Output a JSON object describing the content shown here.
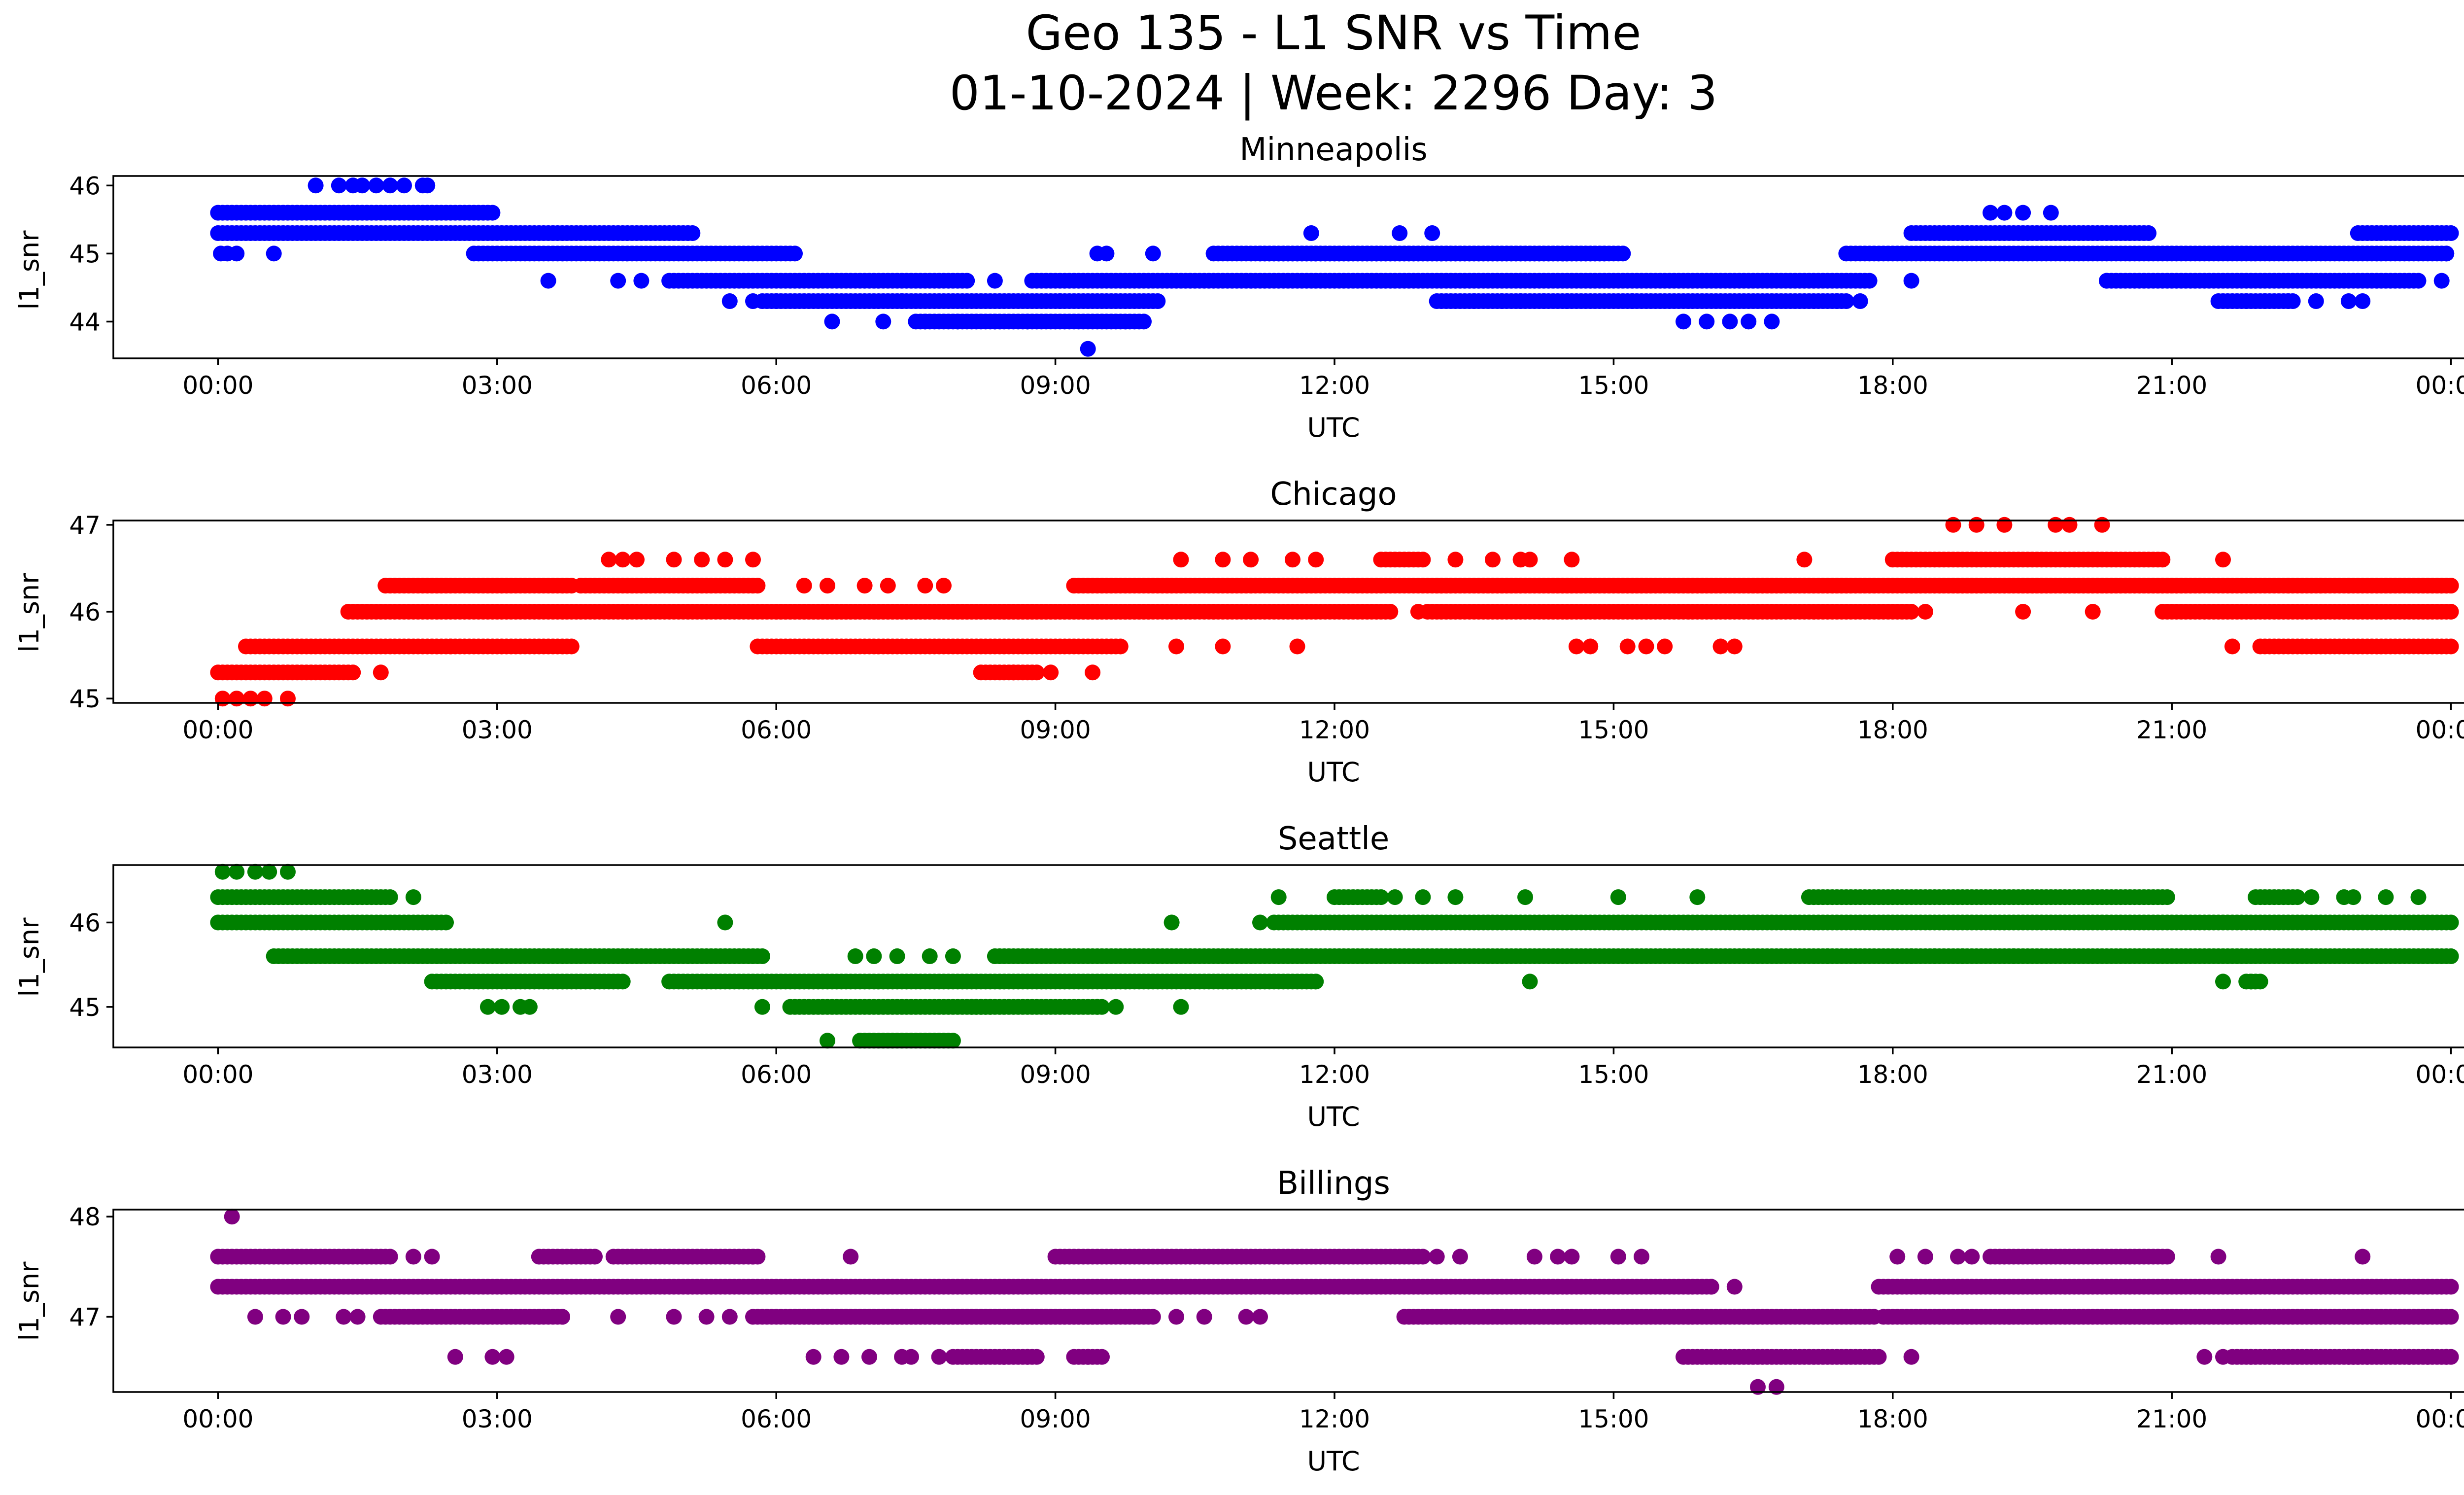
{
  "figure": {
    "title_line1": "Geo 135 - L1 SNR vs Time",
    "title_line2": "01-10-2024 | Week: 2296 Day: 3"
  },
  "chart_data": [
    {
      "type": "scatter",
      "title": "Minneapolis",
      "xlabel": "UTC",
      "ylabel": "l1_snr",
      "color": "#0000ff",
      "xlim_hours": [
        -1.125,
        25.125
      ],
      "ylim": [
        43.46,
        46.14
      ],
      "xticks": [
        "00:00",
        "03:00",
        "06:00",
        "09:00",
        "12:00",
        "15:00",
        "18:00",
        "21:00",
        "00:00"
      ],
      "xtick_hours": [
        0,
        3,
        6,
        9,
        12,
        15,
        18,
        21,
        24
      ],
      "yticks": [
        44,
        45,
        46
      ],
      "points": [
        [
          0.03,
          45.0
        ],
        [
          0.1,
          45.0
        ],
        [
          0.2,
          45.0
        ],
        [
          0.6,
          45.0
        ],
        [
          1.05,
          46.0
        ],
        [
          1.3,
          46.0
        ],
        [
          1.45,
          46.0
        ],
        [
          1.55,
          46.0
        ],
        [
          1.7,
          46.0
        ],
        [
          1.85,
          46.0
        ],
        [
          2.0,
          46.0
        ],
        [
          2.2,
          46.0
        ],
        [
          2.25,
          46.0
        ],
        [
          3.55,
          44.6
        ],
        [
          4.3,
          44.6
        ],
        [
          4.55,
          44.6
        ],
        [
          5.5,
          44.3
        ],
        [
          5.75,
          44.3
        ],
        [
          6.0,
          44.3
        ],
        [
          6.6,
          44.0
        ],
        [
          7.15,
          44.0
        ],
        [
          7.35,
          44.3
        ],
        [
          7.6,
          44.0
        ],
        [
          7.95,
          44.0
        ],
        [
          8.35,
          44.6
        ],
        [
          8.35,
          44.0
        ],
        [
          8.7,
          44.0
        ],
        [
          9.05,
          44.3
        ],
        [
          9.35,
          43.6
        ],
        [
          9.45,
          45.0
        ],
        [
          9.55,
          45.0
        ],
        [
          10.05,
          45.0
        ],
        [
          11.75,
          45.3
        ],
        [
          12.7,
          45.3
        ],
        [
          13.05,
          45.3
        ],
        [
          13.5,
          44.3
        ],
        [
          13.8,
          44.3
        ],
        [
          14.0,
          44.3
        ],
        [
          14.25,
          44.3
        ],
        [
          14.5,
          44.3
        ],
        [
          15.2,
          44.3
        ],
        [
          15.75,
          44.0
        ],
        [
          16.0,
          44.0
        ],
        [
          16.25,
          44.0
        ],
        [
          16.45,
          44.0
        ],
        [
          16.7,
          44.0
        ],
        [
          17.4,
          44.3
        ],
        [
          17.65,
          44.3
        ],
        [
          18.2,
          44.6
        ],
        [
          19.05,
          45.6
        ],
        [
          19.2,
          45.6
        ],
        [
          19.4,
          45.6
        ],
        [
          19.7,
          45.6
        ],
        [
          20.3,
          44.6
        ],
        [
          21.8,
          44.3
        ],
        [
          22.0,
          44.3
        ],
        [
          22.25,
          44.3
        ],
        [
          22.55,
          44.3
        ],
        [
          22.9,
          44.3
        ],
        [
          23.05,
          44.3
        ],
        [
          23.9,
          44.6
        ],
        [
          23.95,
          45.0
        ]
      ],
      "runs": [
        [
          0,
          2.95,
          45.6
        ],
        [
          0,
          5.1,
          45.3
        ],
        [
          2.75,
          6.2,
          45.0
        ],
        [
          4.85,
          8.05,
          44.6
        ],
        [
          5.85,
          10.1,
          44.3
        ],
        [
          7.5,
          9.95,
          44.0
        ],
        [
          8.75,
          17.75,
          44.6
        ],
        [
          10.7,
          14.9,
          45.0
        ],
        [
          11.2,
          15.1,
          45.0
        ],
        [
          13.1,
          17.5,
          44.3
        ],
        [
          17.5,
          23.95,
          45.0
        ],
        [
          18.2,
          20.75,
          45.3
        ],
        [
          20.3,
          23.65,
          44.6
        ],
        [
          21.5,
          22.3,
          44.3
        ],
        [
          23.0,
          24.0,
          45.3
        ]
      ]
    },
    {
      "type": "scatter",
      "title": "Chicago",
      "xlabel": "UTC",
      "ylabel": "l1_snr",
      "color": "#ff0000",
      "xlim_hours": [
        -1.125,
        25.125
      ],
      "ylim": [
        44.95,
        47.05
      ],
      "xticks": [
        "00:00",
        "03:00",
        "06:00",
        "09:00",
        "12:00",
        "15:00",
        "18:00",
        "21:00",
        "00:00"
      ],
      "xtick_hours": [
        0,
        3,
        6,
        9,
        12,
        15,
        18,
        21,
        24
      ],
      "yticks": [
        45,
        46,
        47
      ],
      "points": [
        [
          0.05,
          45.0
        ],
        [
          0.2,
          45.0
        ],
        [
          0.35,
          45.0
        ],
        [
          0.5,
          45.0
        ],
        [
          0.75,
          45.0
        ],
        [
          1.75,
          45.3
        ],
        [
          4.2,
          46.6
        ],
        [
          4.35,
          46.6
        ],
        [
          4.5,
          46.6
        ],
        [
          4.9,
          46.6
        ],
        [
          5.2,
          46.6
        ],
        [
          5.45,
          46.6
        ],
        [
          5.75,
          46.6
        ],
        [
          6.3,
          46.3
        ],
        [
          6.55,
          46.3
        ],
        [
          6.95,
          46.3
        ],
        [
          7.2,
          46.3
        ],
        [
          7.6,
          46.3
        ],
        [
          7.8,
          46.3
        ],
        [
          8.55,
          45.3
        ],
        [
          8.95,
          45.3
        ],
        [
          9.4,
          45.3
        ],
        [
          10.35,
          46.6
        ],
        [
          10.3,
          45.6
        ],
        [
          10.8,
          46.6
        ],
        [
          10.8,
          45.6
        ],
        [
          11.1,
          46.6
        ],
        [
          11.6,
          45.6
        ],
        [
          11.55,
          46.6
        ],
        [
          11.8,
          46.6
        ],
        [
          12.9,
          46.0
        ],
        [
          13.3,
          46.6
        ],
        [
          13.7,
          46.6
        ],
        [
          14.0,
          46.6
        ],
        [
          14.1,
          46.6
        ],
        [
          14.55,
          46.6
        ],
        [
          14.6,
          45.6
        ],
        [
          14.75,
          45.6
        ],
        [
          15.15,
          45.6
        ],
        [
          15.35,
          45.6
        ],
        [
          15.55,
          45.6
        ],
        [
          16.15,
          45.6
        ],
        [
          16.3,
          45.6
        ],
        [
          17.05,
          46.6
        ],
        [
          18.35,
          46.0
        ],
        [
          18.65,
          47.0
        ],
        [
          18.9,
          47.0
        ],
        [
          19.2,
          47.0
        ],
        [
          19.4,
          46.0
        ],
        [
          19.75,
          47.0
        ],
        [
          19.9,
          47.0
        ],
        [
          20.15,
          46.0
        ],
        [
          20.25,
          47.0
        ],
        [
          21.55,
          46.6
        ],
        [
          21.65,
          45.6
        ],
        [
          22.25,
          46.3
        ],
        [
          22.6,
          46.3
        ],
        [
          22.9,
          46.3
        ]
      ],
      "runs": [
        [
          0,
          1.45,
          45.3
        ],
        [
          0.3,
          2.5,
          45.6
        ],
        [
          1.4,
          10.7,
          46.0
        ],
        [
          1.8,
          3.8,
          46.3
        ],
        [
          2.5,
          3.8,
          45.6
        ],
        [
          3.9,
          5.8,
          46.3
        ],
        [
          5.8,
          9.7,
          45.6
        ],
        [
          6.0,
          10.0,
          46.0
        ],
        [
          8.2,
          8.8,
          45.3
        ],
        [
          9.2,
          24.0,
          46.3
        ],
        [
          10.7,
          12.6,
          46.0
        ],
        [
          12.5,
          12.95,
          46.6
        ],
        [
          13.0,
          18.2,
          46.0
        ],
        [
          13.1,
          17.8,
          46.3
        ],
        [
          18.0,
          20.9,
          46.6
        ],
        [
          18.2,
          21.3,
          46.3
        ],
        [
          20.9,
          24.0,
          46.0
        ],
        [
          21.95,
          24.0,
          45.6
        ],
        [
          23.3,
          24.0,
          46.3
        ]
      ]
    },
    {
      "type": "scatter",
      "title": "Seattle",
      "xlabel": "UTC",
      "ylabel": "l1_snr",
      "color": "#008000",
      "xlim_hours": [
        -1.125,
        25.125
      ],
      "ylim": [
        44.52,
        46.68
      ],
      "xticks": [
        "00:00",
        "03:00",
        "06:00",
        "09:00",
        "12:00",
        "15:00",
        "18:00",
        "21:00",
        "00:00"
      ],
      "xtick_hours": [
        0,
        3,
        6,
        9,
        12,
        15,
        18,
        21,
        24
      ],
      "yticks": [
        45,
        46
      ],
      "points": [
        [
          0.05,
          46.6
        ],
        [
          0.2,
          46.6
        ],
        [
          0.4,
          46.6
        ],
        [
          0.55,
          46.6
        ],
        [
          0.75,
          46.6
        ],
        [
          2.1,
          46.3
        ],
        [
          2.9,
          45.0
        ],
        [
          3.05,
          45.0
        ],
        [
          3.25,
          45.0
        ],
        [
          3.35,
          45.0
        ],
        [
          4.05,
          45.3
        ],
        [
          5.45,
          46.0
        ],
        [
          5.85,
          45.0
        ],
        [
          6.55,
          44.6
        ],
        [
          6.85,
          45.6
        ],
        [
          7.05,
          45.6
        ],
        [
          7.3,
          45.6
        ],
        [
          7.65,
          45.6
        ],
        [
          7.9,
          45.6
        ],
        [
          9.45,
          45.0
        ],
        [
          9.65,
          45.0
        ],
        [
          10.25,
          46.0
        ],
        [
          10.35,
          45.0
        ],
        [
          11.2,
          46.0
        ],
        [
          11.4,
          46.3
        ],
        [
          12.65,
          46.3
        ],
        [
          12.95,
          46.3
        ],
        [
          13.3,
          46.3
        ],
        [
          14.1,
          45.3
        ],
        [
          14.05,
          46.3
        ],
        [
          15.05,
          46.3
        ],
        [
          15.9,
          46.3
        ],
        [
          17.3,
          45.6
        ],
        [
          17.6,
          45.6
        ],
        [
          18.2,
          45.6
        ],
        [
          18.45,
          45.6
        ],
        [
          18.75,
          45.6
        ],
        [
          19.3,
          45.6
        ],
        [
          21.55,
          45.3
        ],
        [
          21.85,
          45.3
        ],
        [
          22.5,
          46.3
        ],
        [
          22.85,
          46.3
        ],
        [
          22.95,
          46.3
        ],
        [
          23.3,
          46.3
        ],
        [
          23.65,
          46.3
        ]
      ],
      "runs": [
        [
          0,
          1.85,
          46.3
        ],
        [
          0,
          2.45,
          46.0
        ],
        [
          0.6,
          5.85,
          45.6
        ],
        [
          2.3,
          4.35,
          45.3
        ],
        [
          4.85,
          11.8,
          45.3
        ],
        [
          6.15,
          8.3,
          45.0
        ],
        [
          6.9,
          7.9,
          44.6
        ],
        [
          8.1,
          9.5,
          45.0
        ],
        [
          8.35,
          24.0,
          45.6
        ],
        [
          11.35,
          24.0,
          46.0
        ],
        [
          12.0,
          12.5,
          46.3
        ],
        [
          17.1,
          20.95,
          46.3
        ],
        [
          21.8,
          21.95,
          45.3
        ],
        [
          21.9,
          22.35,
          46.3
        ]
      ]
    },
    {
      "type": "scatter",
      "title": "Billings",
      "xlabel": "UTC",
      "ylabel": "l1_snr",
      "color": "#800080",
      "xlim_hours": [
        -1.125,
        25.125
      ],
      "ylim": [
        46.25,
        48.07
      ],
      "xticks": [
        "00:00",
        "03:00",
        "06:00",
        "09:00",
        "12:00",
        "15:00",
        "18:00",
        "21:00",
        "00:00"
      ],
      "xtick_hours": [
        0,
        3,
        6,
        9,
        12,
        15,
        18,
        21,
        24
      ],
      "yticks": [
        47,
        48
      ],
      "points": [
        [
          0.15,
          48.0
        ],
        [
          0.4,
          47.0
        ],
        [
          0.7,
          47.0
        ],
        [
          0.9,
          47.0
        ],
        [
          1.35,
          47.0
        ],
        [
          1.5,
          47.0
        ],
        [
          1.75,
          47.0
        ],
        [
          2.1,
          47.6
        ],
        [
          2.3,
          47.6
        ],
        [
          2.55,
          46.6
        ],
        [
          2.95,
          46.6
        ],
        [
          3.1,
          46.6
        ],
        [
          3.45,
          47.0
        ],
        [
          3.7,
          47.0
        ],
        [
          4.3,
          47.0
        ],
        [
          4.9,
          47.0
        ],
        [
          5.25,
          47.0
        ],
        [
          5.5,
          47.0
        ],
        [
          5.75,
          47.6
        ],
        [
          6.4,
          46.6
        ],
        [
          6.7,
          46.6
        ],
        [
          6.8,
          47.6
        ],
        [
          7.0,
          46.6
        ],
        [
          7.35,
          46.6
        ],
        [
          7.45,
          46.6
        ],
        [
          7.75,
          46.6
        ],
        [
          8.45,
          46.6
        ],
        [
          8.7,
          46.6
        ],
        [
          9.35,
          46.6
        ],
        [
          10.05,
          47.0
        ],
        [
          10.3,
          47.0
        ],
        [
          10.6,
          47.0
        ],
        [
          11.05,
          47.0
        ],
        [
          11.2,
          47.0
        ],
        [
          13.1,
          47.6
        ],
        [
          13.35,
          47.6
        ],
        [
          14.15,
          47.6
        ],
        [
          14.4,
          47.6
        ],
        [
          14.55,
          47.6
        ],
        [
          15.05,
          47.6
        ],
        [
          15.3,
          47.6
        ],
        [
          16.05,
          47.3
        ],
        [
          16.3,
          47.3
        ],
        [
          16.55,
          46.3
        ],
        [
          16.75,
          46.3
        ],
        [
          18.2,
          46.6
        ],
        [
          18.05,
          47.6
        ],
        [
          18.35,
          47.6
        ],
        [
          18.7,
          47.6
        ],
        [
          18.85,
          47.6
        ],
        [
          19.25,
          47.0
        ],
        [
          19.55,
          47.0
        ],
        [
          21.0,
          47.0
        ],
        [
          21.5,
          47.6
        ],
        [
          21.35,
          46.6
        ],
        [
          21.55,
          46.6
        ],
        [
          21.85,
          46.6
        ],
        [
          23.05,
          47.6
        ],
        [
          23.1,
          46.6
        ],
        [
          23.55,
          46.6
        ],
        [
          23.75,
          46.6
        ],
        [
          23.95,
          46.6
        ]
      ],
      "runs": [
        [
          0,
          1.85,
          47.6
        ],
        [
          0,
          16.05,
          47.3
        ],
        [
          1.8,
          3.7,
          47.0
        ],
        [
          3.45,
          4.05,
          47.6
        ],
        [
          4.25,
          5.8,
          47.6
        ],
        [
          5.75,
          9.45,
          47.0
        ],
        [
          6.2,
          10.0,
          47.0
        ],
        [
          7.9,
          8.8,
          46.6
        ],
        [
          9.0,
          12.95,
          47.6
        ],
        [
          9.2,
          9.5,
          46.6
        ],
        [
          12.75,
          17.8,
          47.0
        ],
        [
          15.75,
          17.85,
          46.6
        ],
        [
          17.85,
          24.0,
          47.3
        ],
        [
          17.9,
          24.0,
          47.0
        ],
        [
          19.05,
          20.95,
          47.6
        ],
        [
          21.65,
          23.0,
          46.6
        ],
        [
          22.9,
          24.0,
          46.6
        ]
      ]
    }
  ]
}
